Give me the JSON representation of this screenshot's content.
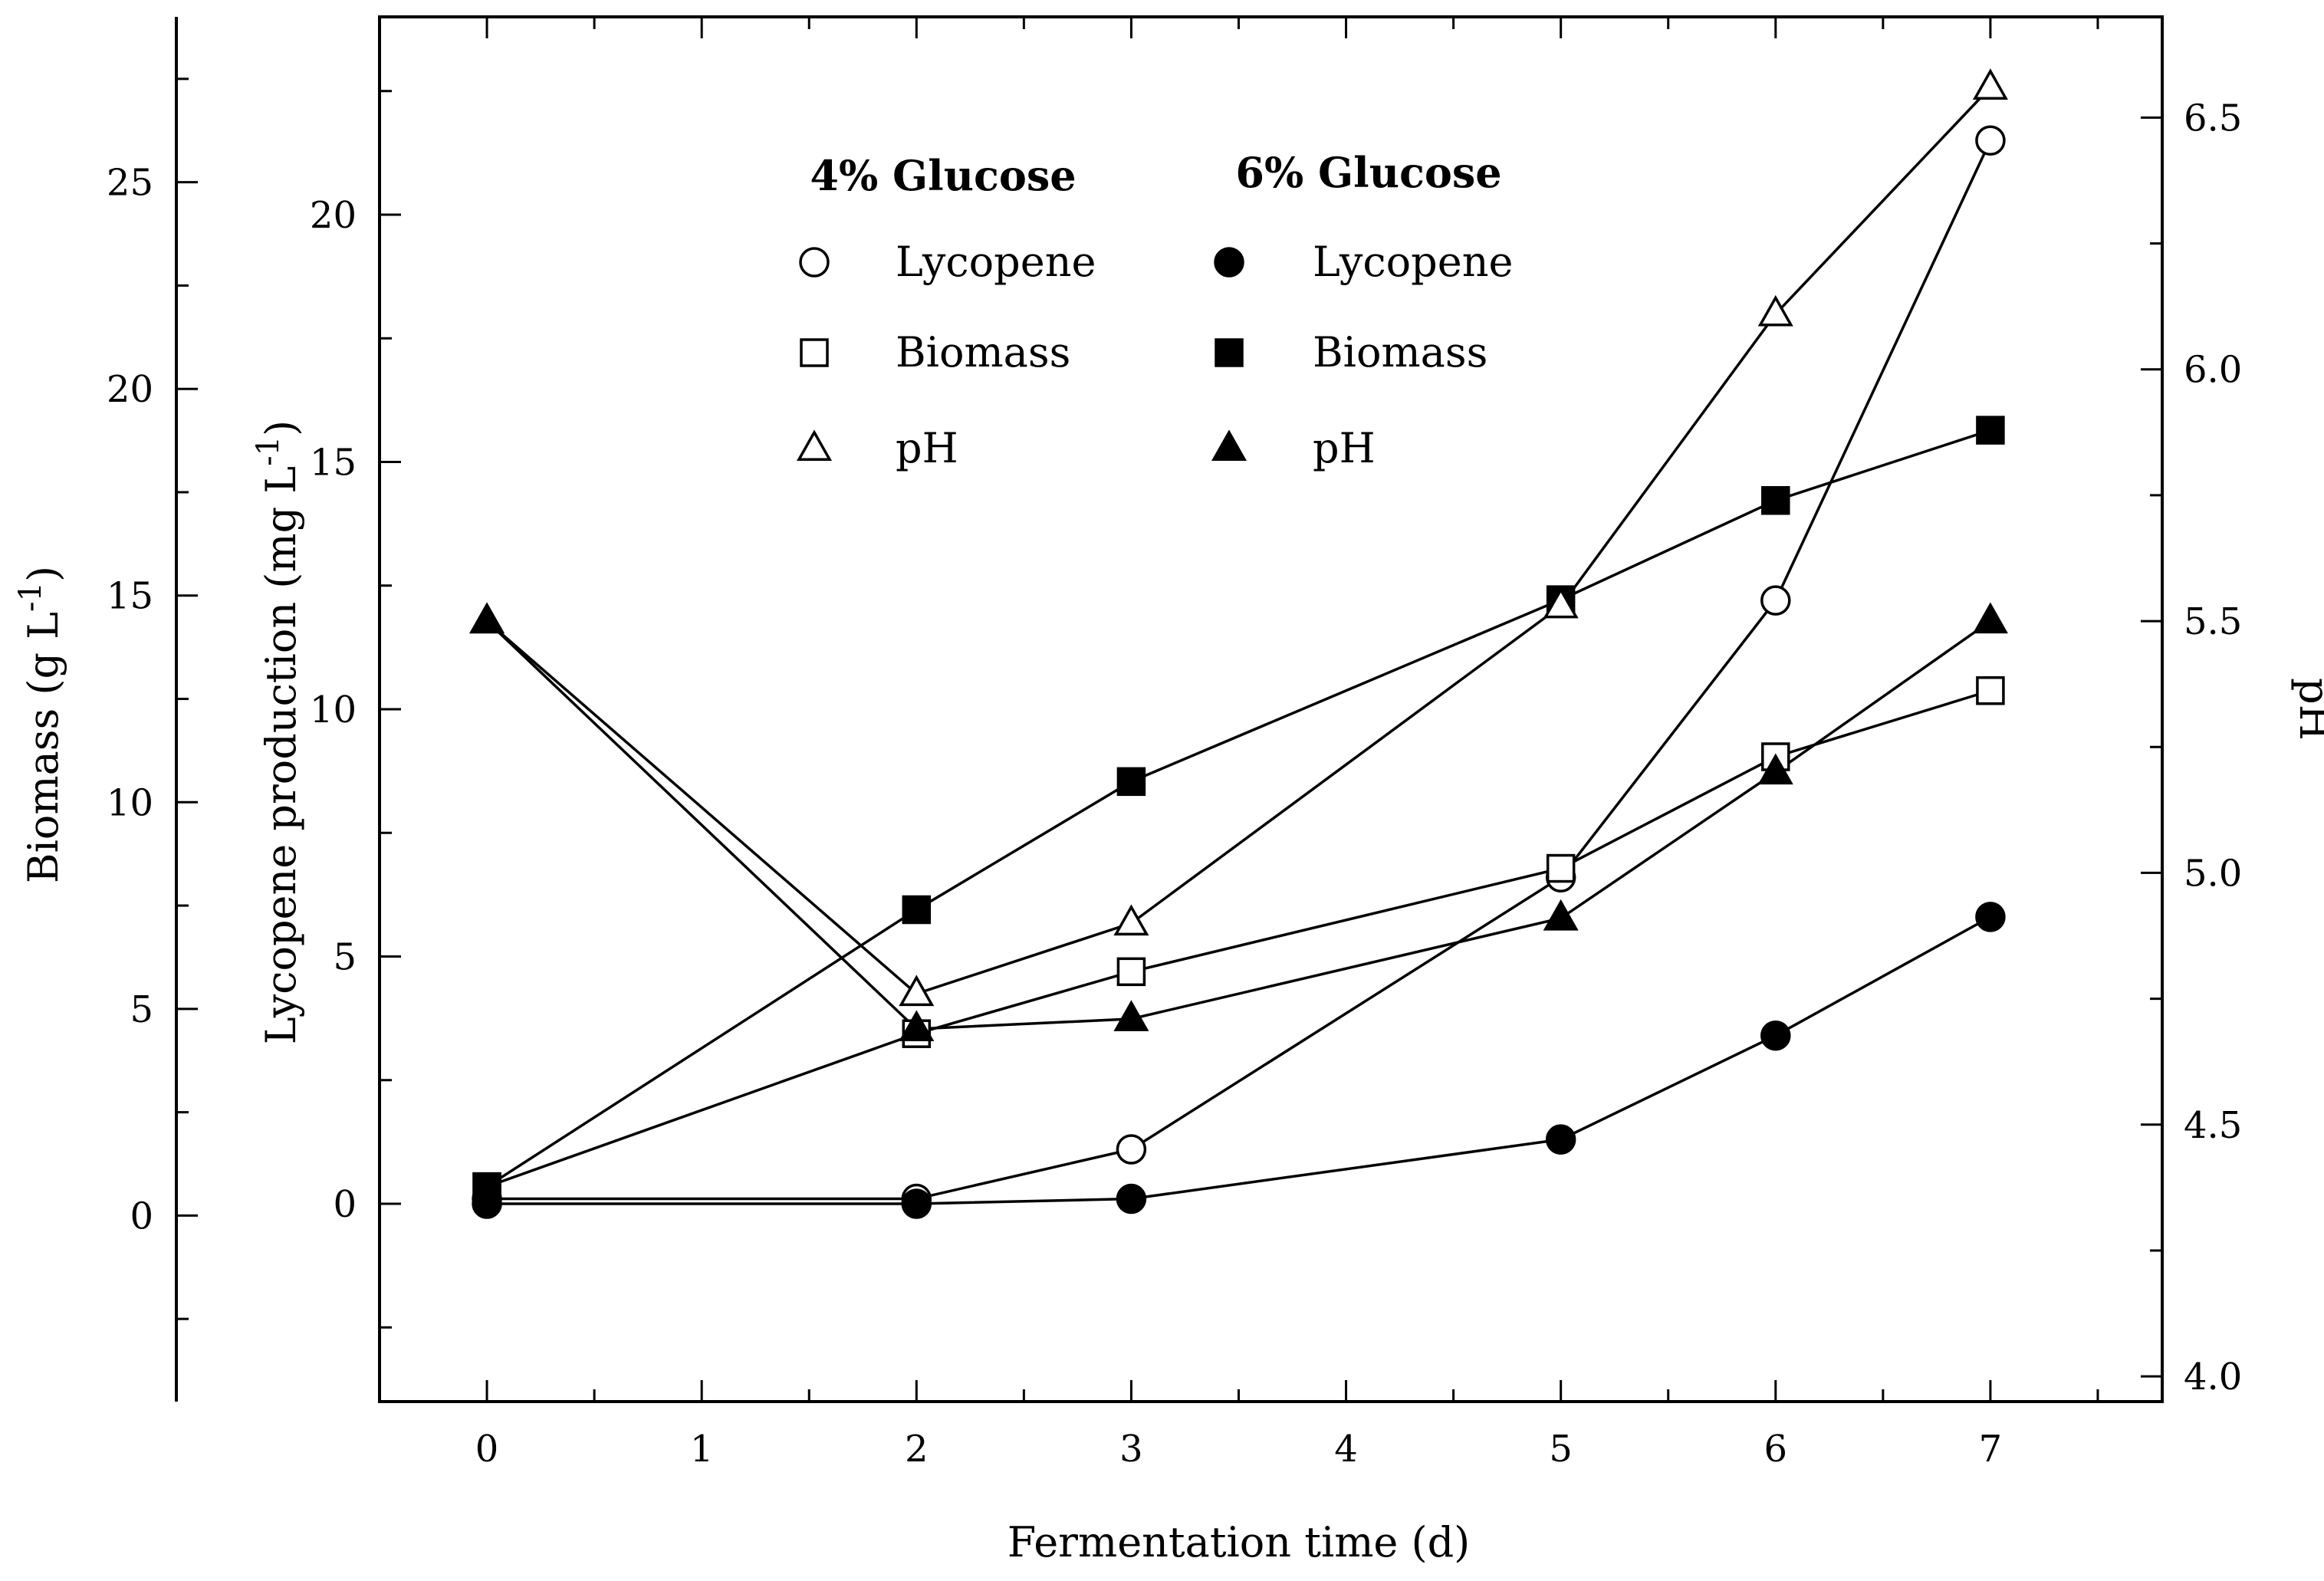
{
  "chart_data": {
    "type": "line",
    "xlabel": "Fermentation time (d)",
    "x_ticks": [
      "0",
      "1",
      "2",
      "3",
      "4",
      "5",
      "6",
      "7"
    ],
    "xlim": [
      -0.5,
      7.8
    ],
    "axes": {
      "lycopene": {
        "label": "Lycopene production (mg L",
        "label_sup": "-1",
        "label_close": ")",
        "ylim": [
          -4,
          24
        ],
        "ticks": [
          "0",
          "5",
          "10",
          "15",
          "20"
        ]
      },
      "biomass": {
        "label": "Biomass (g L",
        "label_sup": "-1",
        "label_close": ")",
        "ylim": [
          -4.5,
          29
        ],
        "ticks": [
          "0",
          "5",
          "10",
          "15",
          "20",
          "25"
        ]
      },
      "ph": {
        "label": "pH",
        "ylim": [
          3.95,
          6.7
        ],
        "ticks": [
          "4.0",
          "4.5",
          "5.0",
          "5.5",
          "6.0",
          "6.5"
        ]
      }
    },
    "legend": {
      "header_4": "4% Glucose",
      "header_6": "6% Glucose",
      "entries_4": [
        "Lycopene",
        "Biomass",
        "pH"
      ],
      "entries_6": [
        "Lycopene",
        "Biomass",
        "pH"
      ]
    },
    "series": [
      {
        "name": "Lycopene 4% Glucose",
        "axis": "lycopene",
        "marker": "circle",
        "fill": "open",
        "x": [
          0,
          2,
          3,
          5,
          6,
          7
        ],
        "values": [
          0.1,
          0.1,
          1.1,
          6.6,
          12.2,
          21.5
        ]
      },
      {
        "name": "Lycopene 6% Glucose",
        "axis": "lycopene",
        "marker": "circle",
        "fill": "filled",
        "x": [
          0,
          2,
          3,
          5,
          6,
          7
        ],
        "values": [
          0.0,
          0.0,
          0.1,
          1.3,
          3.4,
          5.8
        ]
      },
      {
        "name": "Biomass 4% Glucose",
        "axis": "biomass",
        "marker": "square",
        "fill": "open",
        "x": [
          0,
          2,
          3,
          5,
          6,
          7
        ],
        "values": [
          0.7,
          4.4,
          5.9,
          8.4,
          11.1,
          12.7
        ]
      },
      {
        "name": "Biomass 6% Glucose",
        "axis": "biomass",
        "marker": "square",
        "fill": "filled",
        "x": [
          0,
          2,
          3,
          5,
          6,
          7
        ],
        "values": [
          0.7,
          7.4,
          10.5,
          14.9,
          17.3,
          19.0
        ]
      },
      {
        "name": "pH 4% Glucose",
        "axis": "ph",
        "marker": "triangle",
        "fill": "open",
        "x": [
          0,
          2,
          3,
          5,
          6,
          7
        ],
        "values": [
          5.5,
          4.76,
          4.9,
          5.53,
          6.11,
          6.56
        ]
      },
      {
        "name": "pH 6% Glucose",
        "axis": "ph",
        "marker": "triangle",
        "fill": "filled",
        "x": [
          0,
          2,
          3,
          5,
          6,
          7
        ],
        "values": [
          5.5,
          4.69,
          4.71,
          4.91,
          5.2,
          5.5
        ]
      }
    ]
  }
}
